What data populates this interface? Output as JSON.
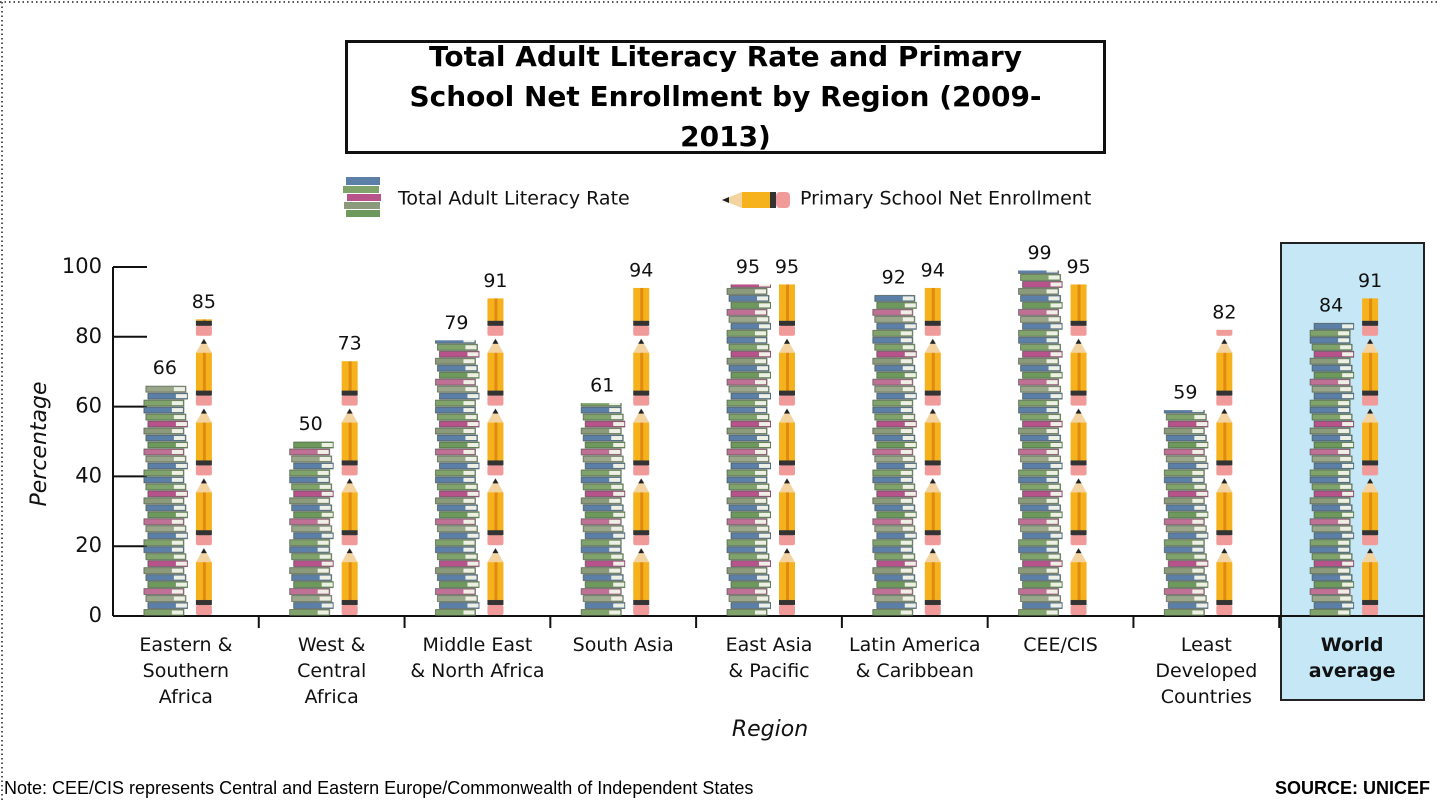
{
  "chart_data": {
    "type": "pictograph-bar",
    "title": "Total Adult Literacy Rate and Primary School Net Enrollment by Region (2009-2013)",
    "x_label": "Region",
    "y_label": "Percentage",
    "categories": [
      "Eastern &\nSouthern\nAfrica",
      "West &\nCentral\nAfrica",
      "Middle East\n& North Africa",
      "South Asia",
      "East Asia\n& Pacific",
      "Latin America\n& Caribbean",
      "CEE/CIS",
      "Least\nDeveloped\nCountries",
      "World\naverage"
    ],
    "highlight": 8,
    "series": [
      {
        "name": "Total Adult Literacy Rate",
        "color": "#5b7fa6",
        "values": [
          66,
          50,
          79,
          61,
          95,
          92,
          99,
          59,
          84
        ]
      },
      {
        "name": "Primary School Net Enrollment",
        "color": "#f6b21c",
        "values": [
          85,
          73,
          91,
          94,
          95,
          94,
          95,
          82,
          91
        ]
      }
    ],
    "ylim": [
      0,
      100
    ],
    "yticks": [
      0,
      20,
      40,
      60,
      80,
      100
    ],
    "grid": false,
    "note": "Note: CEE/CIS represents Central and Eastern Europe/Commonwealth of Independent States",
    "source": "SOURCE: UNICEF"
  }
}
